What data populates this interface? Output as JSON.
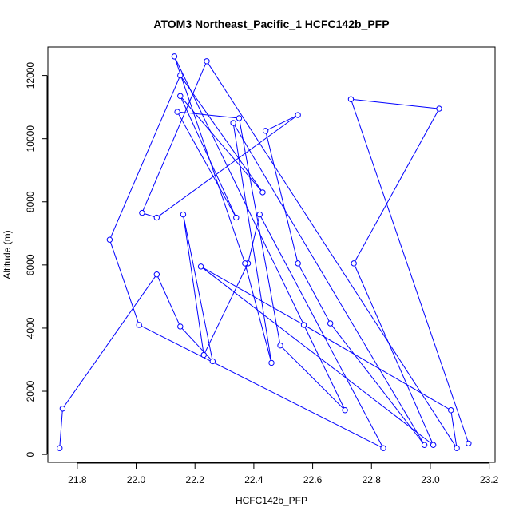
{
  "chart_data": {
    "type": "line",
    "title": "ATOM3 Northeast_Pacific_1 HCFC142b_PFP",
    "xlabel": "HCFC142b_PFP",
    "ylabel": "Altitude (m)",
    "xlim": [
      21.7,
      23.22
    ],
    "ylim": [
      -250,
      12900
    ],
    "xticks": [
      21.8,
      22.0,
      22.2,
      22.4,
      22.6,
      22.8,
      23.0,
      23.2
    ],
    "yticks": [
      0,
      2000,
      4000,
      6000,
      8000,
      10000,
      12000
    ],
    "grid": false,
    "series_color": "#0000FF",
    "marker": "open-circle",
    "series": [
      {
        "x": [
          21.74,
          21.75,
          22.07,
          22.15,
          22.26,
          22.16,
          22.23,
          22.38,
          22.42,
          22.84,
          22.01,
          21.91,
          22.15,
          22.43,
          22.15,
          22.34,
          22.14,
          22.35,
          22.49,
          22.71,
          22.13,
          22.37,
          22.46,
          22.33,
          22.98,
          22.66,
          22.55,
          22.44,
          22.55,
          22.07,
          22.02,
          22.24,
          23.09,
          23.07,
          22.57,
          22.22,
          23.01,
          22.74,
          23.03,
          22.73,
          23.13
        ],
        "y": [
          200,
          1450,
          5700,
          4050,
          2950,
          7600,
          3150,
          6050,
          7600,
          200,
          4100,
          6800,
          12000,
          8300,
          11350,
          7500,
          10850,
          10650,
          3450,
          1400,
          12600,
          6050,
          2900,
          10500,
          300,
          4150,
          6050,
          10250,
          10750,
          7500,
          7650,
          12450,
          200,
          1400,
          4100,
          5950,
          300,
          6050,
          10950,
          11250,
          350
        ]
      }
    ]
  }
}
